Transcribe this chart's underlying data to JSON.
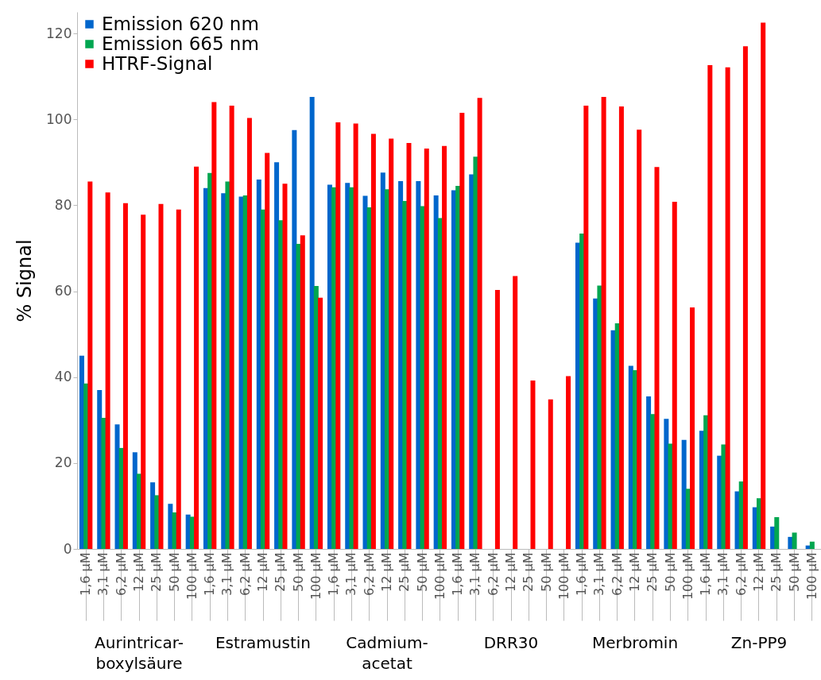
{
  "chart_data": {
    "type": "bar",
    "ylabel": "% Signal",
    "ylim": [
      0,
      125
    ],
    "yticks": [
      0,
      20,
      40,
      60,
      80,
      100,
      120
    ],
    "legend": "top left",
    "categories": [
      "1,6 µM",
      "3,1 µM",
      "6,2 µM",
      "12 µM",
      "25 µM",
      "50 µM",
      "100 µM",
      "1,6 µM",
      "3,1 µM",
      "6,2 µM",
      "12 µM",
      "25 µM",
      "50 µM",
      "100 µM",
      "1,6 µM",
      "3,1 µM",
      "6,2 µM",
      "12 µM",
      "25 µM",
      "50 µM",
      "100 µM",
      "1,6 µM",
      "3,1 µM",
      "6,2 µM",
      "12 µM",
      "25 µM",
      "50 µM",
      "100 µM",
      "1,6 µM",
      "3,1 µM",
      "6,2 µM",
      "12 µM",
      "25 µM",
      "50 µM",
      "100 µM",
      "1,6 µM",
      "3,1 µM",
      "6,2 µM",
      "12 µM",
      "25 µM",
      "50 µM",
      "100 µM"
    ],
    "annotations": [
      "Aurintricar-\nboxylsäure",
      "Estramustin",
      "Cadmium-\nacetat",
      "DRR30",
      "Merbromin",
      "Zn-PP9"
    ],
    "series": [
      {
        "name": "Emission 620 nm",
        "color": "#0066cc",
        "values": [
          45,
          37,
          29,
          22.5,
          15.5,
          10.5,
          8,
          84,
          82.8,
          82,
          86,
          90,
          97.5,
          105.2,
          84.8,
          85.2,
          82.2,
          87.6,
          85.6,
          85.6,
          82.3,
          83.5,
          87.2,
          null,
          null,
          null,
          null,
          null,
          71.3,
          58.3,
          50.9,
          42.6,
          35.5,
          30.3,
          25.4,
          27.5,
          21.7,
          13.4,
          9.7,
          5.2,
          2.8,
          0.8
        ]
      },
      {
        "name": "Emission 665 nm",
        "color": "#00a650",
        "values": [
          38.5,
          30.5,
          23.5,
          17.5,
          12.5,
          8.5,
          7.5,
          87.5,
          85.5,
          82.3,
          79,
          76.5,
          71,
          61.2,
          84.2,
          84.2,
          79.5,
          83.7,
          81,
          79.8,
          77,
          84.5,
          91.3,
          null,
          null,
          null,
          null,
          null,
          73.4,
          61.3,
          52.5,
          41.6,
          31.4,
          24.5,
          14,
          31.1,
          24.3,
          15.7,
          11.8,
          7.4,
          3.8,
          1.7
        ]
      },
      {
        "name": "HTRF-Signal",
        "color": "#ff0000",
        "values": [
          85.5,
          83,
          80.5,
          77.8,
          80.3,
          79,
          89,
          104,
          103.2,
          100.3,
          92.2,
          85,
          73,
          58.5,
          99.3,
          99,
          96.6,
          95.5,
          94.5,
          93.2,
          93.8,
          101.5,
          105,
          60.3,
          63.5,
          39.2,
          34.8,
          40.2,
          103.2,
          105.2,
          103,
          97.6,
          88.9,
          80.8,
          56.2,
          112.6,
          112.1,
          117,
          122.5,
          null,
          null,
          null
        ]
      }
    ]
  }
}
